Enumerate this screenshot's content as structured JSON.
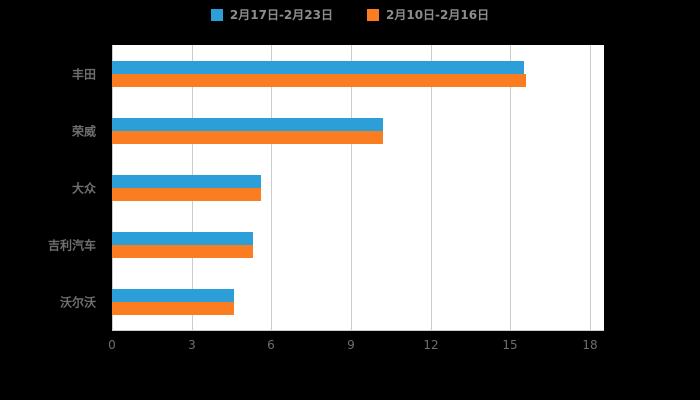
{
  "colors": {
    "background": "#000000",
    "plot_background": "#ffffff",
    "gridline": "#cccccc",
    "axis_text": "#6e6e6e",
    "legend_text": "#8c8c8c"
  },
  "chart_data": {
    "type": "bar",
    "orientation": "horizontal",
    "title": "",
    "xlabel": "",
    "ylabel": "",
    "categories": [
      "丰田",
      "荣威",
      "大众",
      "吉利汽车",
      "沃尔沃"
    ],
    "series": [
      {
        "name": "2月17日-2月23日",
        "color": "#2D9FD8",
        "values": [
          15.5,
          10.2,
          5.6,
          5.3,
          4.6
        ]
      },
      {
        "name": "2月10日-2月16日",
        "color": "#FB7D21",
        "values": [
          15.6,
          10.2,
          5.6,
          5.3,
          4.6
        ]
      }
    ],
    "xticks": [
      0,
      3,
      6,
      9,
      12,
      15,
      18
    ],
    "xlim": [
      0,
      18.5
    ],
    "grid": true,
    "legend_position": "top-center"
  }
}
